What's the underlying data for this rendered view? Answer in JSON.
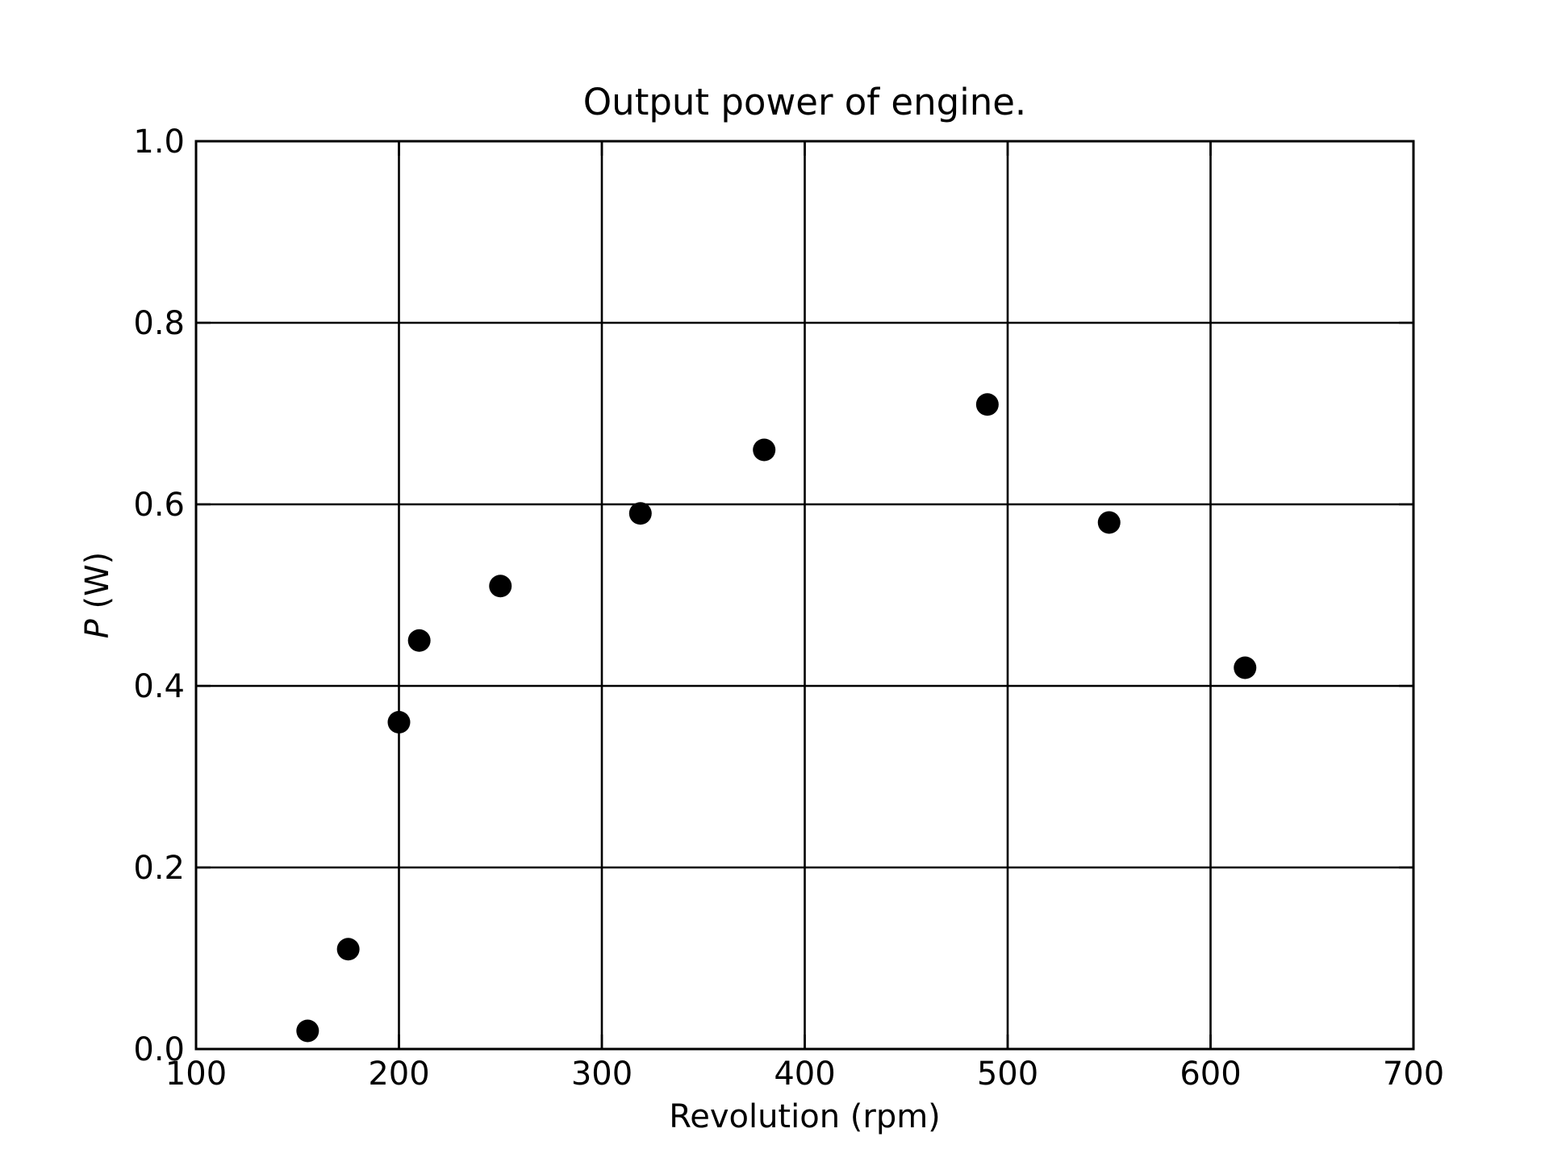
{
  "chart_data": {
    "type": "scatter",
    "title": "Output power of engine.",
    "xlabel": "Revolution (rpm)",
    "ylabel_symbol": "P",
    "ylabel_unit": " (W)",
    "xlim": [
      100,
      700
    ],
    "ylim": [
      0.0,
      1.0
    ],
    "xticks": [
      100,
      200,
      300,
      400,
      500,
      600,
      700
    ],
    "xtick_labels": [
      "100",
      "200",
      "300",
      "400",
      "500",
      "600",
      "700"
    ],
    "yticks": [
      0.0,
      0.2,
      0.4,
      0.6,
      0.8,
      1.0
    ],
    "ytick_labels": [
      "0.0",
      "0.2",
      "0.4",
      "0.6",
      "0.8",
      "1.0"
    ],
    "grid": true,
    "marker_color": "#000000",
    "series": [
      {
        "points": [
          {
            "x": 155,
            "y": 0.02
          },
          {
            "x": 175,
            "y": 0.11
          },
          {
            "x": 200,
            "y": 0.36
          },
          {
            "x": 210,
            "y": 0.45
          },
          {
            "x": 250,
            "y": 0.51
          },
          {
            "x": 319,
            "y": 0.59
          },
          {
            "x": 380,
            "y": 0.66
          },
          {
            "x": 490,
            "y": 0.71
          },
          {
            "x": 550,
            "y": 0.58
          },
          {
            "x": 617,
            "y": 0.42
          }
        ]
      }
    ]
  }
}
